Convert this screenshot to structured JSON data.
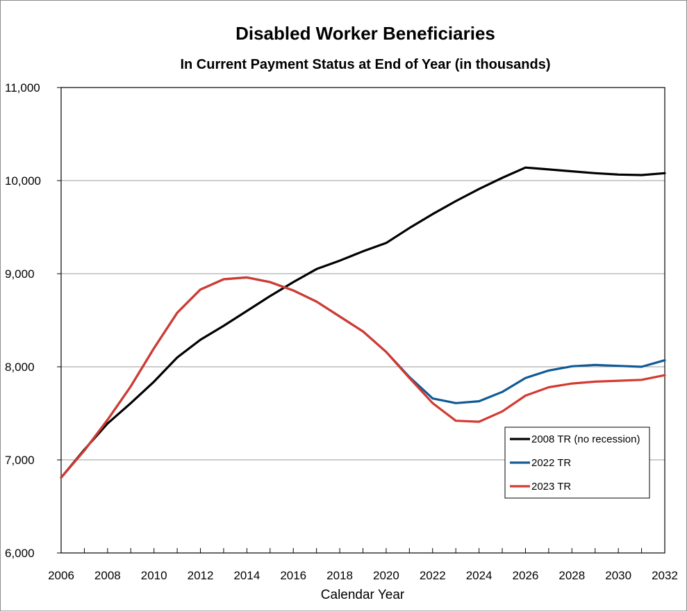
{
  "chart_data": {
    "type": "line",
    "title": "Disabled Worker Beneficiaries",
    "subtitle": "In Current Payment Status at End of Year (in thousands)",
    "xlabel": "Calendar Year",
    "ylabel": "",
    "xlim": [
      2006,
      2032
    ],
    "ylim": [
      6000,
      11000
    ],
    "x_ticks": [
      "2006",
      "2008",
      "2010",
      "2012",
      "2014",
      "2016",
      "2018",
      "2020",
      "2022",
      "2024",
      "2026",
      "2028",
      "2030",
      "2032"
    ],
    "y_ticks": [
      "6,000",
      "7,000",
      "8,000",
      "9,000",
      "10,000",
      "11,000"
    ],
    "y_tick_values": [
      6000,
      7000,
      8000,
      9000,
      10000,
      11000
    ],
    "grid": "horizontal",
    "legend_position": "bottom-right",
    "x": [
      2006,
      2007,
      2008,
      2009,
      2010,
      2011,
      2012,
      2013,
      2014,
      2015,
      2016,
      2017,
      2018,
      2019,
      2020,
      2021,
      2022,
      2023,
      2024,
      2025,
      2026,
      2027,
      2028,
      2029,
      2030,
      2031,
      2032
    ],
    "series": [
      {
        "name": "2008 TR (no recession)",
        "color": "#000000",
        "values": [
          6810,
          7110,
          7390,
          7610,
          7840,
          8100,
          8290,
          8440,
          8600,
          8760,
          8910,
          9050,
          9140,
          9240,
          9330,
          9490,
          9640,
          9780,
          9910,
          10030,
          10140,
          10120,
          10100,
          10080,
          10065,
          10060,
          10080
        ]
      },
      {
        "name": "2022 TR",
        "color": "#0f5a96",
        "values": [
          6810,
          7100,
          7430,
          7790,
          8200,
          8580,
          8830,
          8940,
          8960,
          8910,
          8820,
          8700,
          8540,
          8380,
          8160,
          7890,
          7660,
          7610,
          7630,
          7730,
          7880,
          7960,
          8005,
          8020,
          8010,
          8000,
          8070
        ]
      },
      {
        "name": "2023 TR",
        "color": "#d33a30",
        "values": [
          6810,
          7100,
          7430,
          7790,
          8200,
          8580,
          8830,
          8940,
          8960,
          8910,
          8820,
          8700,
          8540,
          8380,
          8160,
          7880,
          7610,
          7420,
          7410,
          7520,
          7690,
          7780,
          7820,
          7840,
          7850,
          7860,
          7910
        ]
      }
    ]
  }
}
